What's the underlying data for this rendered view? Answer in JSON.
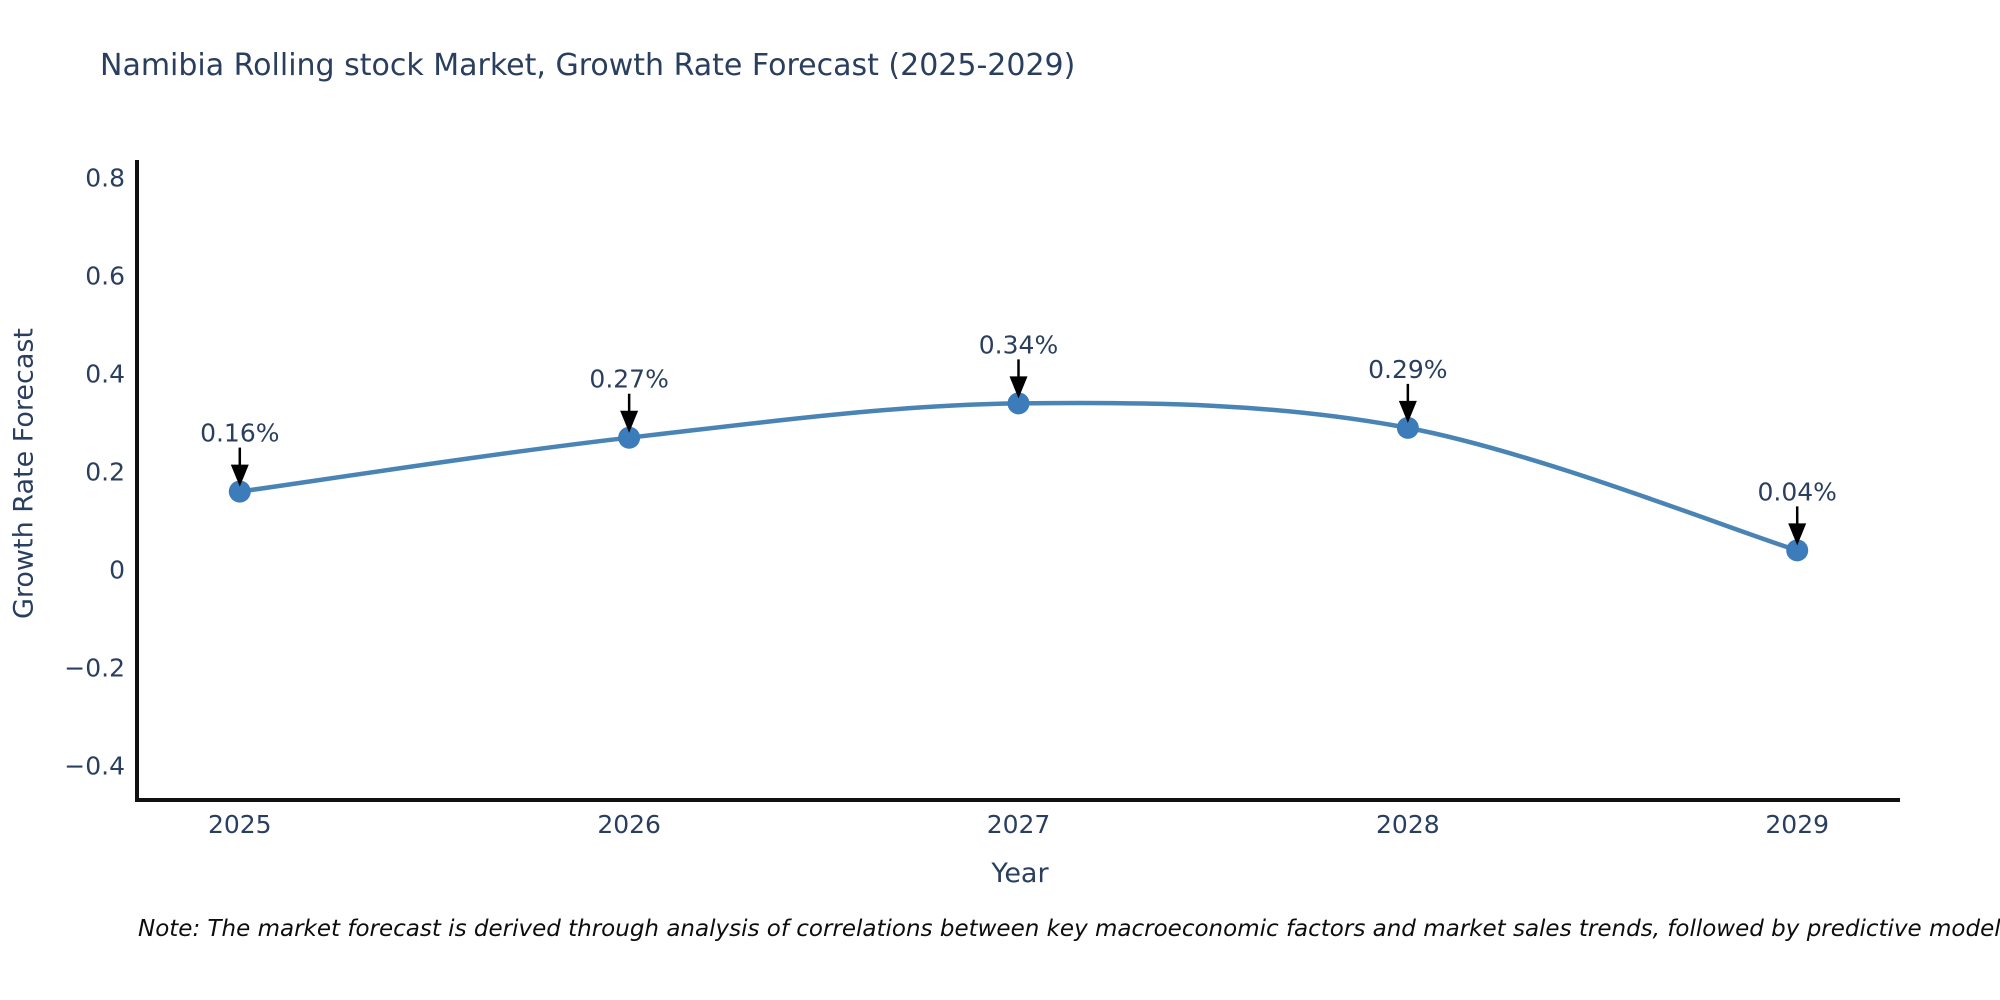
{
  "note": {
    "text": "Note: The market forecast is derived through analysis of correlations between key macroeconomic factors and market sales trends, followed by predictive modeling to project future sales."
  },
  "chart_data": {
    "type": "line",
    "title": "Namibia Rolling stock Market, Growth Rate Forecast (2025-2029)",
    "xlabel": "Year",
    "ylabel": "Growth Rate Forecast",
    "categories": [
      "2025",
      "2026",
      "2027",
      "2028",
      "2029"
    ],
    "x": [
      2025,
      2026,
      2027,
      2028,
      2029
    ],
    "series": [
      {
        "name": "Growth Rate Forecast",
        "values": [
          0.16,
          0.27,
          0.34,
          0.29,
          0.04
        ]
      }
    ],
    "annotations": [
      "0.16%",
      "0.27%",
      "0.34%",
      "0.29%",
      "0.04%"
    ],
    "yticks": [
      0.8,
      0.6,
      0.4,
      0.2,
      0,
      -0.2,
      -0.4
    ],
    "ytick_labels": [
      "0.8",
      "0.6",
      "0.4",
      "0.2",
      "0",
      "−0.2",
      "−0.4"
    ],
    "ylim": [
      -0.4694,
      0.8367
    ],
    "xlim": [
      2024.736,
      2029.264
    ],
    "grid": false,
    "legend": "none",
    "line_color": "#4a84b5",
    "marker_color": "#3d7cbb",
    "annotation_arrow_color": "#000000",
    "axis_line_color": "#111111",
    "text_color": "#2a3f5f"
  }
}
